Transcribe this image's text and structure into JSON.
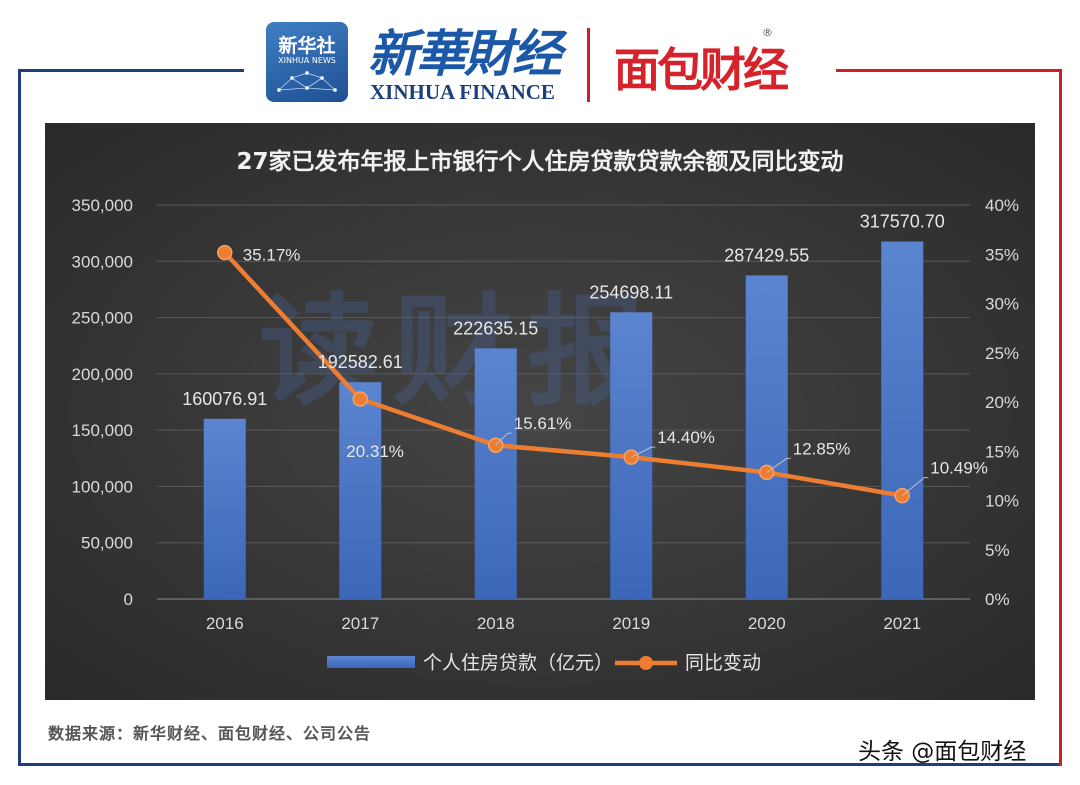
{
  "header": {
    "xinhua_logo_cn": "新华社",
    "xinhua_logo_en": "XINHUA NEWS",
    "xinhua_finance_cn": "新華財经",
    "xinhua_finance_en": "XINHUA FINANCE",
    "mianbao_logo": "面包财经",
    "registered_mark": "®",
    "brand_red": "#d6222b",
    "brand_blue": "#1c58a8"
  },
  "watermark": "读财报",
  "source_text": "数据来源：新华财经、面包财经、公司公告",
  "toutiao_mark": "头条 @面包财经",
  "chart_data": {
    "type": "bar+line",
    "title": "27家已发布年报上市银行个人住房贷款贷款余额及同比变动",
    "categories": [
      "2016",
      "2017",
      "2018",
      "2019",
      "2020",
      "2021"
    ],
    "series": [
      {
        "name": "个人住房贷款（亿元）",
        "type": "bar",
        "axis": "left",
        "color": "#4472c4",
        "values": [
          160076.91,
          192582.61,
          222635.15,
          254698.11,
          287429.55,
          317570.7
        ],
        "labels": [
          "160076.91",
          "192582.61",
          "222635.15",
          "254698.11",
          "287429.55",
          "317570.70"
        ]
      },
      {
        "name": "同比变动",
        "type": "line",
        "axis": "right",
        "color": "#ed7d31",
        "values": [
          35.17,
          20.31,
          15.61,
          14.4,
          12.85,
          10.49
        ],
        "labels": [
          "35.17%",
          "20.31%",
          "15.61%",
          "14.40%",
          "12.85%",
          "10.49%"
        ]
      }
    ],
    "y_left": {
      "min": 0,
      "max": 350000,
      "ticks": [
        "0",
        "50,000",
        "100,000",
        "150,000",
        "200,000",
        "250,000",
        "300,000",
        "350,000"
      ]
    },
    "y_right": {
      "min": 0,
      "max": 40,
      "ticks": [
        "0%",
        "5%",
        "10%",
        "15%",
        "20%",
        "25%",
        "30%",
        "35%",
        "40%"
      ]
    },
    "grid": true,
    "legend_position": "bottom"
  }
}
